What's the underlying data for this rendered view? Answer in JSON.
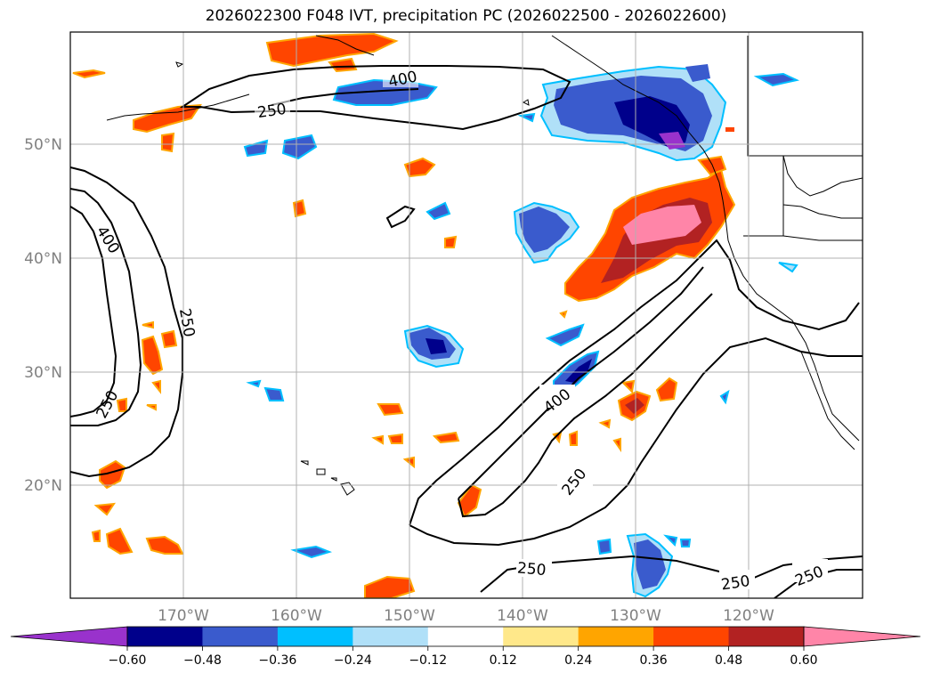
{
  "title": "2026022300 F048 IVT, precipitation PC (2026022500 - 2026022600)",
  "longitude_ticks": [
    "170°W",
    "160°W",
    "150°W",
    "140°W",
    "130°W",
    "120°W"
  ],
  "latitude_ticks": [
    "50°N",
    "40°N",
    "30°N",
    "20°N"
  ],
  "contour_levels": [
    "250",
    "400"
  ],
  "colorbar": {
    "colors": [
      "#9932cc",
      "#00008b",
      "#3a5bcd",
      "#00bfff",
      "#b0e0f8",
      "#ffffff",
      "#ffe88a",
      "#ffa500",
      "#ff4500",
      "#b22222",
      "#ff85a8"
    ],
    "labels": [
      "−0.60",
      "−0.48",
      "−0.36",
      "−0.24",
      "−0.12",
      "0.12",
      "0.24",
      "0.36",
      "0.48",
      "0.60"
    ]
  }
}
